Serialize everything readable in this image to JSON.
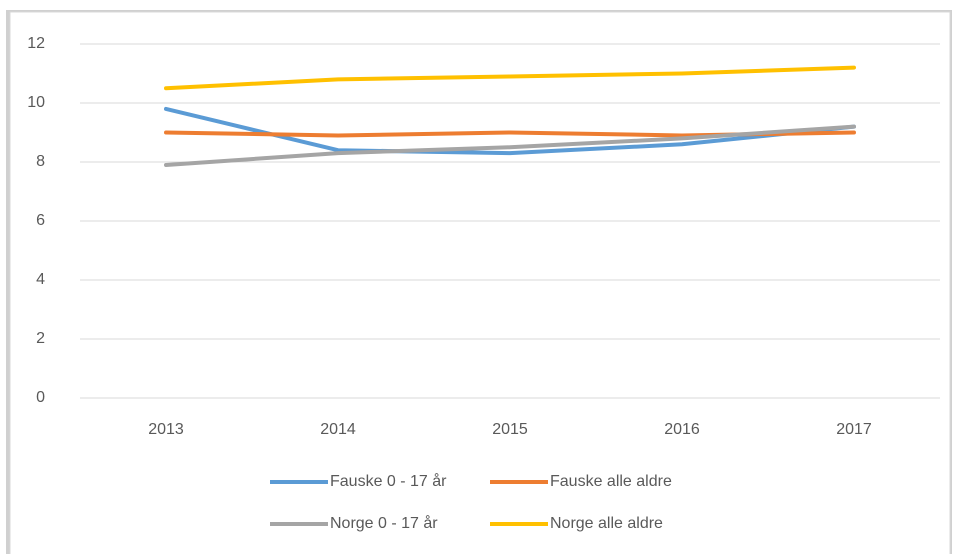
{
  "chart_data": {
    "type": "line",
    "categories": [
      "2013",
      "2014",
      "2015",
      "2016",
      "2017"
    ],
    "series": [
      {
        "name": "Fauske 0 - 17 år",
        "color": "#5b9bd5",
        "values": [
          9.8,
          8.4,
          8.3,
          8.6,
          9.2
        ]
      },
      {
        "name": "Fauske alle aldre",
        "color": "#ed7d31",
        "values": [
          9.0,
          8.9,
          9.0,
          8.9,
          9.0
        ]
      },
      {
        "name": "Norge 0 - 17 år",
        "color": "#a5a5a5",
        "values": [
          7.9,
          8.3,
          8.5,
          8.8,
          9.2
        ]
      },
      {
        "name": "Norge alle aldre",
        "color": "#ffc000",
        "values": [
          10.5,
          10.8,
          10.9,
          11.0,
          11.2
        ]
      }
    ],
    "ylim": [
      0,
      12
    ],
    "yticks": [
      0,
      2,
      4,
      6,
      8,
      10,
      12
    ],
    "grid": true,
    "legend": "bottom"
  }
}
